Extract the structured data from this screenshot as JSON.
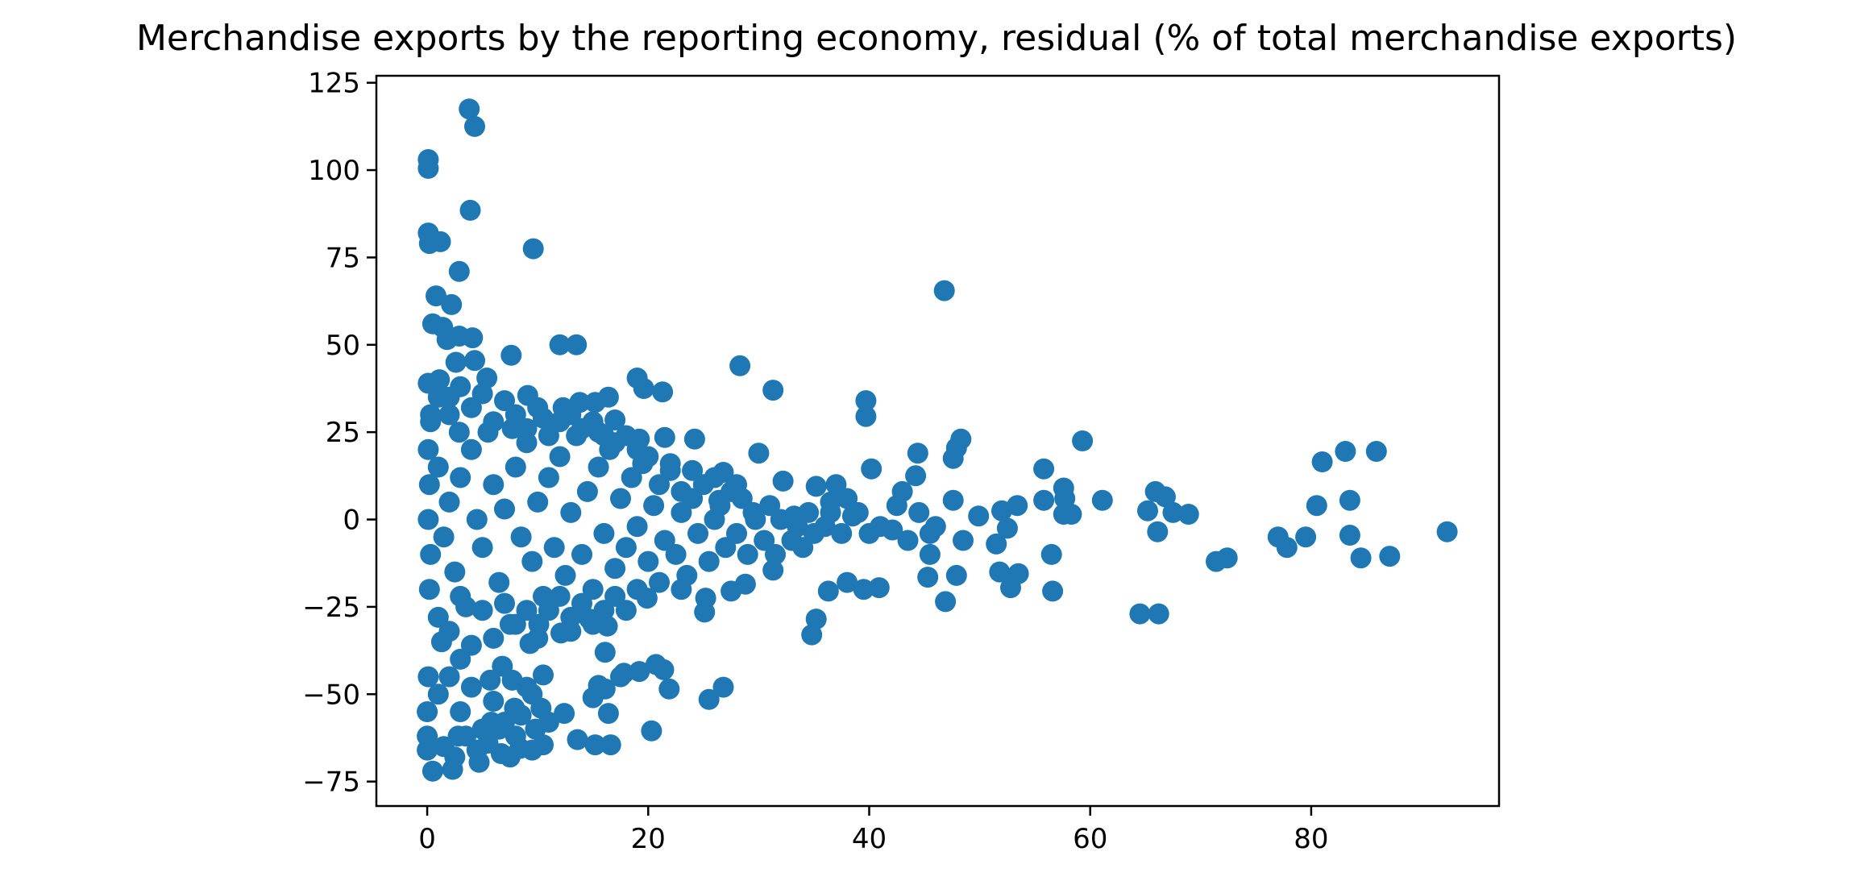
{
  "chart_data": {
    "type": "scatter",
    "title": "Merchandise exports by the reporting economy, residual (% of total merchandise exports)",
    "xlabel": "",
    "ylabel": "",
    "xlim": [
      -4.6,
      97
    ],
    "ylim": [
      -82,
      127
    ],
    "xticks": [
      0,
      20,
      40,
      60,
      80
    ],
    "yticks": [
      -75,
      -50,
      -25,
      0,
      25,
      50,
      75,
      100,
      125
    ],
    "grid": false,
    "legend": "none",
    "marker_color": "#1f77b4",
    "points": [
      [
        3.8,
        117.5
      ],
      [
        4.3,
        112.5
      ],
      [
        0.1,
        103
      ],
      [
        0.1,
        100.5
      ],
      [
        3.9,
        88.5
      ],
      [
        0.1,
        82
      ],
      [
        1.2,
        79.5
      ],
      [
        0.2,
        79
      ],
      [
        9.6,
        77.5
      ],
      [
        2.9,
        71
      ],
      [
        0.8,
        64
      ],
      [
        2.2,
        61.5
      ],
      [
        46.8,
        65.5
      ],
      [
        0.5,
        56
      ],
      [
        1.4,
        55
      ],
      [
        2.9,
        52.5
      ],
      [
        4.1,
        52
      ],
      [
        1.8,
        51.5
      ],
      [
        12.0,
        50
      ],
      [
        13.5,
        50
      ],
      [
        7.6,
        47
      ],
      [
        4.3,
        45.5
      ],
      [
        2.6,
        45
      ],
      [
        28.3,
        44
      ],
      [
        5.4,
        40.5
      ],
      [
        19.0,
        40.5
      ],
      [
        1.1,
        40
      ],
      [
        0.1,
        39
      ],
      [
        19.6,
        37.5
      ],
      [
        31.3,
        37
      ],
      [
        21.3,
        36.5
      ],
      [
        2.0,
        35
      ],
      [
        9.1,
        35.5
      ],
      [
        13.8,
        33.5
      ],
      [
        15.2,
        33.5
      ],
      [
        16.4,
        35
      ],
      [
        39.7,
        34
      ],
      [
        12.3,
        32
      ],
      [
        39.7,
        29.5
      ],
      [
        10.5,
        29
      ],
      [
        17.0,
        28.5
      ],
      [
        0.3,
        28
      ],
      [
        15.5,
        25
      ],
      [
        7.7,
        26
      ],
      [
        2.9,
        25
      ],
      [
        48.3,
        23
      ],
      [
        59.3,
        22.5
      ],
      [
        47.9,
        20.5
      ],
      [
        21.5,
        23.5
      ],
      [
        24.2,
        23
      ],
      [
        19.2,
        23
      ],
      [
        30.0,
        19
      ],
      [
        44.4,
        19
      ],
      [
        47.6,
        17.5
      ],
      [
        85.9,
        19.5
      ],
      [
        83.1,
        19.5
      ],
      [
        81.0,
        16.5
      ],
      [
        55.8,
        14.5
      ],
      [
        40.2,
        14.5
      ],
      [
        37.0,
        10
      ],
      [
        26.8,
        13.5
      ],
      [
        32.2,
        11
      ],
      [
        35.2,
        9.5
      ],
      [
        57.6,
        9
      ],
      [
        43.0,
        8
      ],
      [
        65.9,
        8
      ],
      [
        44.2,
        12.5
      ],
      [
        61.1,
        5.5
      ],
      [
        55.8,
        5.5
      ],
      [
        57.7,
        6
      ],
      [
        47.6,
        5.5
      ],
      [
        83.5,
        5.5
      ],
      [
        80.5,
        4
      ],
      [
        66.8,
        6.5
      ],
      [
        49.9,
        1
      ],
      [
        52.0,
        2.5
      ],
      [
        53.4,
        4
      ],
      [
        65.2,
        2.5
      ],
      [
        68.9,
        1.5
      ],
      [
        58.3,
        1.5
      ],
      [
        57.6,
        1.5
      ],
      [
        67.5,
        2
      ],
      [
        23.0,
        8
      ],
      [
        26.4,
        5.5
      ],
      [
        29.7,
        0
      ],
      [
        33.2,
        1
      ],
      [
        36.5,
        5
      ],
      [
        38.5,
        1
      ],
      [
        42.1,
        -3
      ],
      [
        45.5,
        -4
      ],
      [
        52.5,
        -2.5
      ],
      [
        66.1,
        -3.5
      ],
      [
        48.5,
        -6
      ],
      [
        51.5,
        -7
      ],
      [
        56.5,
        -10
      ],
      [
        45.5,
        -10
      ],
      [
        77.0,
        -5
      ],
      [
        79.5,
        -5
      ],
      [
        83.5,
        -4.5
      ],
      [
        92.3,
        -3.5
      ],
      [
        77.8,
        -8
      ],
      [
        72.4,
        -11
      ],
      [
        71.4,
        -12
      ],
      [
        84.5,
        -11
      ],
      [
        87.1,
        -10.5
      ],
      [
        45.3,
        -16.5
      ],
      [
        47.9,
        -16
      ],
      [
        51.8,
        -15
      ],
      [
        53.5,
        -15.5
      ],
      [
        52.8,
        -19.5
      ],
      [
        56.6,
        -20.5
      ],
      [
        46.9,
        -23.5
      ],
      [
        35.2,
        -28.5
      ],
      [
        34.8,
        -33
      ],
      [
        36.3,
        -20.5
      ],
      [
        39.5,
        -20
      ],
      [
        38.0,
        -18
      ],
      [
        40.9,
        -19.5
      ],
      [
        31.3,
        -14.5
      ],
      [
        28.8,
        -18.5
      ],
      [
        27.5,
        -20.5
      ],
      [
        25.2,
        -22.5
      ],
      [
        25.1,
        -26.5
      ],
      [
        19.9,
        -22.5
      ],
      [
        64.5,
        -27
      ],
      [
        66.2,
        -27
      ],
      [
        25.5,
        -51.5
      ],
      [
        26.8,
        -48
      ],
      [
        21.4,
        -43
      ],
      [
        20.7,
        -41.5
      ],
      [
        21.9,
        -48.5
      ],
      [
        19.2,
        -43.5
      ],
      [
        17.5,
        -45
      ],
      [
        16.1,
        -48.5
      ],
      [
        15.0,
        -51
      ],
      [
        16.4,
        -55.5
      ],
      [
        12.4,
        -55.5
      ],
      [
        13.6,
        -63
      ],
      [
        15.2,
        -64.5
      ],
      [
        16.6,
        -64.5
      ],
      [
        20.3,
        -60.5
      ],
      [
        16.1,
        -38
      ],
      [
        10.5,
        -44.5
      ],
      [
        7.7,
        -46
      ],
      [
        5.7,
        -46
      ],
      [
        9.5,
        -50
      ],
      [
        10.3,
        -54
      ],
      [
        10.5,
        -64.5
      ],
      [
        8.4,
        -65.5
      ],
      [
        6.7,
        -67
      ],
      [
        4.7,
        -69.5
      ],
      [
        2.3,
        -71.5
      ],
      [
        0.5,
        -72
      ],
      [
        12.1,
        -32.5
      ],
      [
        13.0,
        -28
      ],
      [
        14.7,
        -28.5
      ],
      [
        16.3,
        -30.5
      ],
      [
        9.3,
        -35.5
      ],
      [
        10.1,
        -30
      ],
      [
        6.8,
        -42
      ],
      [
        3.0,
        -40
      ],
      [
        1.3,
        -35
      ],
      [
        15.5,
        -47.5
      ],
      [
        17.8,
        -44
      ],
      [
        0.0,
        -62
      ],
      [
        0.0,
        -66
      ],
      [
        2.8,
        -62
      ],
      [
        5.8,
        -58
      ],
      [
        7.9,
        -54
      ],
      [
        9.8,
        -60
      ],
      [
        0.0,
        -55
      ],
      [
        0.1,
        -45
      ],
      [
        0.2,
        -20
      ],
      [
        0.3,
        -10
      ],
      [
        0.1,
        0
      ],
      [
        0.2,
        10
      ],
      [
        0.1,
        20
      ],
      [
        0.3,
        30
      ],
      [
        1.0,
        15
      ],
      [
        1.5,
        -5
      ],
      [
        2.0,
        5
      ],
      [
        2.5,
        -15
      ],
      [
        3.0,
        12
      ],
      [
        3.5,
        -25
      ],
      [
        4.0,
        20
      ],
      [
        4.5,
        0
      ],
      [
        5.0,
        -8
      ],
      [
        5.5,
        25
      ],
      [
        6.0,
        10
      ],
      [
        6.5,
        -18
      ],
      [
        7.0,
        3
      ],
      [
        7.5,
        -30
      ],
      [
        8.0,
        15
      ],
      [
        8.5,
        -5
      ],
      [
        9.0,
        22
      ],
      [
        9.5,
        -12
      ],
      [
        10.0,
        5
      ],
      [
        10.5,
        -22
      ],
      [
        11.0,
        12
      ],
      [
        11.5,
        -8
      ],
      [
        12.0,
        18
      ],
      [
        12.5,
        -16
      ],
      [
        13.0,
        2
      ],
      [
        13.5,
        24
      ],
      [
        14.0,
        -10
      ],
      [
        14.5,
        8
      ],
      [
        15.0,
        -20
      ],
      [
        15.5,
        15
      ],
      [
        16.0,
        -4
      ],
      [
        16.5,
        20
      ],
      [
        17.0,
        -14
      ],
      [
        17.5,
        6
      ],
      [
        18.0,
        -8
      ],
      [
        18.5,
        12
      ],
      [
        19.0,
        -2
      ],
      [
        19.5,
        16
      ],
      [
        20.0,
        -12
      ],
      [
        20.5,
        4
      ],
      [
        21.0,
        10
      ],
      [
        21.5,
        -6
      ],
      [
        22.0,
        14
      ],
      [
        22.5,
        -10
      ],
      [
        23.0,
        2
      ],
      [
        23.5,
        -16
      ],
      [
        24.0,
        6
      ],
      [
        24.5,
        -4
      ],
      [
        25.0,
        10
      ],
      [
        25.5,
        -12
      ],
      [
        26.0,
        0
      ],
      [
        26.5,
        4
      ],
      [
        27.0,
        -8
      ],
      [
        27.5,
        8
      ],
      [
        28.0,
        -4
      ],
      [
        28.5,
        6
      ],
      [
        29.0,
        -10
      ],
      [
        29.5,
        2
      ],
      [
        30.5,
        -6
      ],
      [
        31.0,
        4
      ],
      [
        31.5,
        -10
      ],
      [
        32.0,
        0
      ],
      [
        33.0,
        -6
      ],
      [
        33.5,
        -2
      ],
      [
        34.0,
        -8
      ],
      [
        34.5,
        2
      ],
      [
        35.0,
        -4
      ],
      [
        36.0,
        -2
      ],
      [
        36.5,
        2
      ],
      [
        37.5,
        -4
      ],
      [
        38.0,
        6
      ],
      [
        39.0,
        2
      ],
      [
        40.0,
        -4
      ],
      [
        41.0,
        -2
      ],
      [
        42.5,
        4
      ],
      [
        43.5,
        -6
      ],
      [
        44.5,
        2
      ],
      [
        46.0,
        -2
      ],
      [
        1.0,
        -50
      ],
      [
        2.0,
        -45
      ],
      [
        3.0,
        -55
      ],
      [
        4.0,
        -48
      ],
      [
        5.0,
        -60
      ],
      [
        6.0,
        -52
      ],
      [
        7.0,
        -58
      ],
      [
        8.0,
        -62
      ],
      [
        9.0,
        -48
      ],
      [
        1.5,
        -65
      ],
      [
        2.5,
        -68
      ],
      [
        3.5,
        -62
      ],
      [
        4.5,
        -66
      ],
      [
        5.5,
        -64
      ],
      [
        6.5,
        -60
      ],
      [
        7.5,
        -68
      ],
      [
        8.5,
        -56
      ],
      [
        9.5,
        -66
      ],
      [
        11.0,
        -58
      ],
      [
        1.0,
        -28
      ],
      [
        2.0,
        -32
      ],
      [
        3.0,
        -22
      ],
      [
        4.0,
        -36
      ],
      [
        5.0,
        -26
      ],
      [
        6.0,
        -34
      ],
      [
        7.0,
        -24
      ],
      [
        8.0,
        -30
      ],
      [
        9.0,
        -26
      ],
      [
        10.0,
        -34
      ],
      [
        11.0,
        -26
      ],
      [
        12.0,
        -22
      ],
      [
        13.0,
        -32
      ],
      [
        14.0,
        -24
      ],
      [
        15.0,
        -30
      ],
      [
        16.0,
        -26
      ],
      [
        17.0,
        -22
      ],
      [
        18.0,
        -26
      ],
      [
        19.0,
        -20
      ],
      [
        21.0,
        -18
      ],
      [
        23.0,
        -20
      ],
      [
        1.0,
        35
      ],
      [
        2.0,
        30
      ],
      [
        3.0,
        38
      ],
      [
        4.0,
        32
      ],
      [
        5.0,
        36
      ],
      [
        6.0,
        28
      ],
      [
        7.0,
        34
      ],
      [
        8.0,
        30
      ],
      [
        9.0,
        26
      ],
      [
        10.0,
        32
      ],
      [
        11.0,
        24
      ],
      [
        12.0,
        28
      ],
      [
        13.0,
        30
      ],
      [
        14.0,
        26
      ],
      [
        15.0,
        28
      ],
      [
        16.0,
        24
      ],
      [
        17.0,
        22
      ],
      [
        18.0,
        24
      ],
      [
        19.0,
        20
      ],
      [
        20.0,
        18
      ],
      [
        22.0,
        16
      ],
      [
        24.0,
        14
      ],
      [
        26.0,
        12
      ],
      [
        28.0,
        10
      ]
    ]
  }
}
